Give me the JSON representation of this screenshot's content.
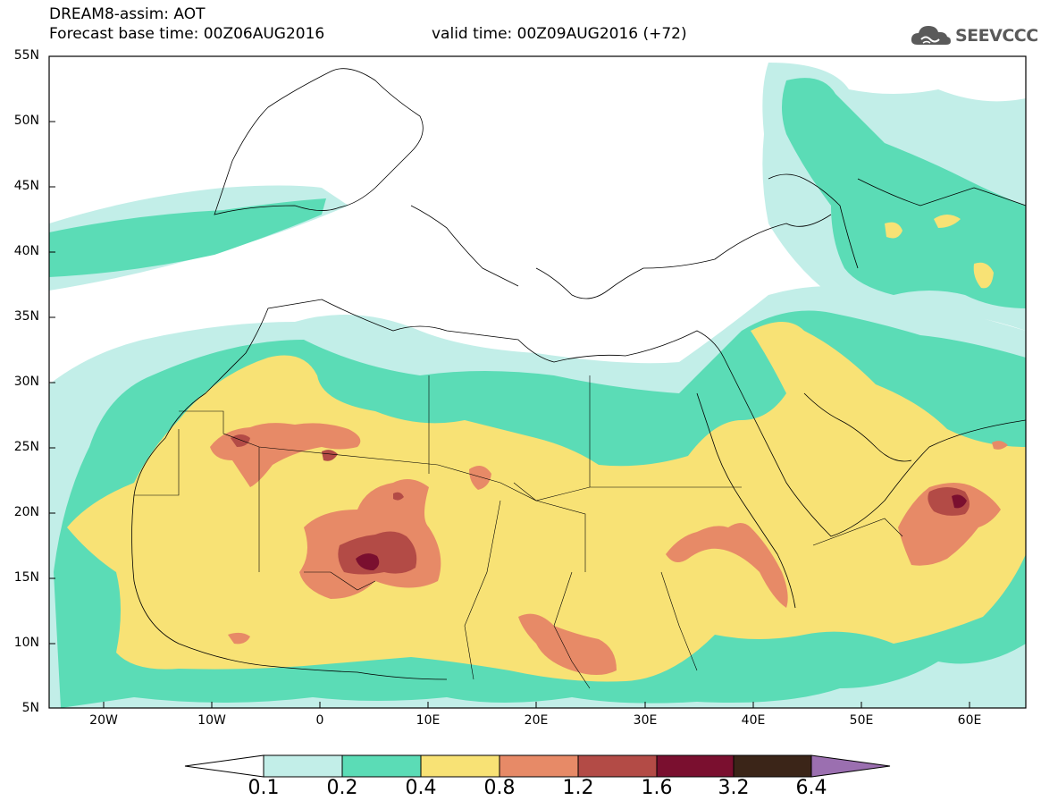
{
  "header": {
    "title_line1": "DREAM8-assim: AOT",
    "title_line2": "Forecast base time: 00Z06AUG2016",
    "valid_time": "valid time: 00Z09AUG2016 (+72)",
    "logo_text": "SEEVCCC",
    "logo_icon": "cloud-icon"
  },
  "map": {
    "variable": "AOT",
    "region_lon": [
      -25,
      65
    ],
    "region_lat": [
      5,
      55
    ],
    "lat_labels": [
      "55N",
      "50N",
      "45N",
      "40N",
      "35N",
      "30N",
      "25N",
      "20N",
      "15N",
      "10N",
      "5N"
    ],
    "lon_labels": [
      "20W",
      "10W",
      "0",
      "10E",
      "20E",
      "30E",
      "40E",
      "50E",
      "60E"
    ]
  },
  "colorbar": {
    "labels": [
      "0.1",
      "0.2",
      "0.4",
      "0.8",
      "1.2",
      "1.6",
      "3.2",
      "6.4"
    ],
    "colors": [
      "#ffffff",
      "#c2eee8",
      "#5bdcb6",
      "#f8e275",
      "#e78a67",
      "#b34b46",
      "#7a0f2f",
      "#3b2518",
      "#9b6fb0"
    ]
  }
}
